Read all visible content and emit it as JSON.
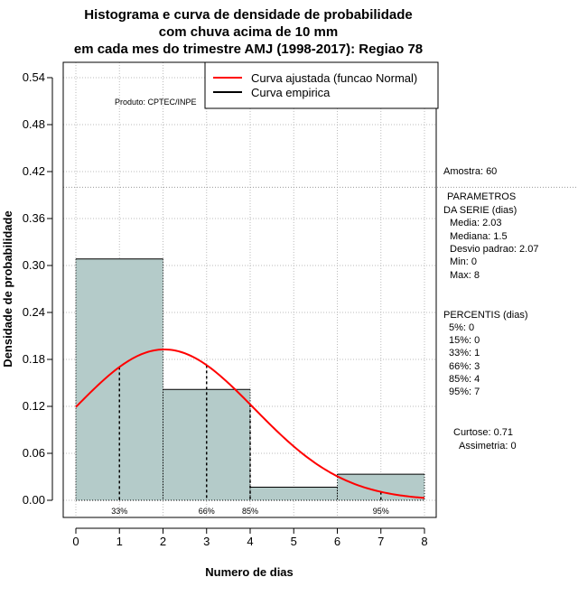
{
  "chart_data": {
    "type": "bar",
    "title_lines": [
      "Histograma e curva de densidade de probabilidade",
      "com chuva acima de 10 mm",
      "em cada mes do trimestre AMJ (1998-2017): Regiao 78"
    ],
    "xlabel": "Numero de dias",
    "ylabel": "Densidade de probabilidade",
    "producer": "Produto: CPTEC/INPE",
    "x_ticks": [
      0,
      1,
      2,
      3,
      4,
      5,
      6,
      7,
      8
    ],
    "y_ticks": [
      "0.00",
      "0.06",
      "0.12",
      "0.18",
      "0.24",
      "0.30",
      "0.36",
      "0.42",
      "0.48",
      "0.54"
    ],
    "xlim": [
      0,
      8
    ],
    "ylim": [
      0,
      0.54
    ],
    "bins": [
      {
        "x0": 0,
        "x1": 2,
        "density": 0.3083
      },
      {
        "x0": 2,
        "x1": 4,
        "density": 0.1417
      },
      {
        "x0": 4,
        "x1": 6,
        "density": 0.0167
      },
      {
        "x0": 6,
        "x1": 8,
        "density": 0.0333
      }
    ],
    "normal_fit": {
      "mean": 2.03,
      "sd": 2.07
    },
    "percentile_markers": [
      {
        "label": "33%",
        "x": 1
      },
      {
        "label": "66%",
        "x": 3
      },
      {
        "label": "85%",
        "x": 4
      },
      {
        "label": "95%",
        "x": 7
      }
    ],
    "legend": [
      {
        "label": "Curva ajustada (funcao Normal)",
        "color": "#ff0000"
      },
      {
        "label": "Curva empirica",
        "color": "#000000"
      }
    ],
    "legend_position": "top-right",
    "grid": true,
    "colors": {
      "bar_fill": "#b4cbc9",
      "fit_curve": "#ff0000",
      "grid": "#bbbbbb"
    }
  },
  "stats": {
    "sample": "Amostra: 60",
    "params_title_1": "PARAMETROS",
    "params_title_2": "DA SERIE (dias)",
    "params": [
      "Media: 2.03",
      "Mediana: 1.5",
      "Desvio padrao: 2.07",
      "Min: 0",
      "Max: 8"
    ],
    "percentis_title": "PERCENTIS (dias)",
    "percentis": [
      "5%: 0",
      "15%: 0",
      "33%: 1",
      "66%: 3",
      "85%: 4",
      "95%: 7"
    ],
    "curtose": "Curtose: 0.71",
    "assimetria": "Assimetria: 0"
  }
}
